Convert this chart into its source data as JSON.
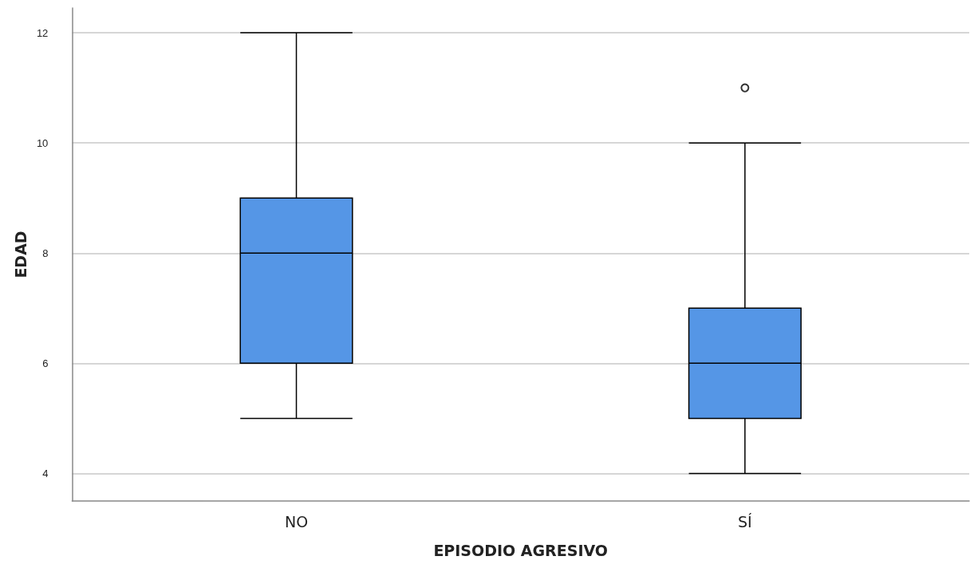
{
  "chart_data": {
    "type": "box",
    "xlabel": "EPISODIO AGRESIVO",
    "ylabel": "EDAD",
    "categories": [
      "NO",
      "SÍ"
    ],
    "color": "#5596e6",
    "boxes": [
      {
        "low": 5,
        "q1": 6,
        "median": 8,
        "q3": 9,
        "high": 12
      },
      {
        "low": 4,
        "q1": 5,
        "median": 6,
        "q3": 7,
        "high": 10,
        "outliers": [
          11
        ]
      }
    ],
    "ylim": [
      3.5,
      12.45
    ],
    "yticks": [
      4,
      6,
      8,
      10,
      12
    ],
    "grid": "y"
  }
}
